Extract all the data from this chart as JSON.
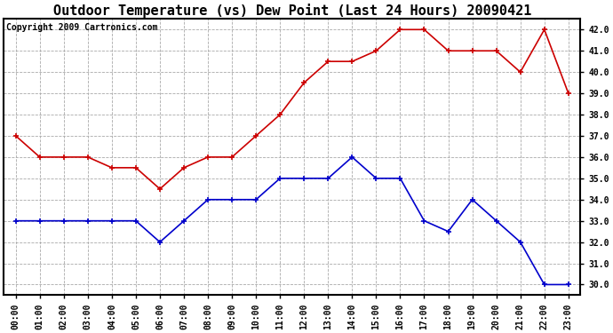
{
  "title": "Outdoor Temperature (vs) Dew Point (Last 24 Hours) 20090421",
  "copyright": "Copyright 2009 Cartronics.com",
  "hours": [
    "00:00",
    "01:00",
    "02:00",
    "03:00",
    "04:00",
    "05:00",
    "06:00",
    "07:00",
    "08:00",
    "09:00",
    "10:00",
    "11:00",
    "12:00",
    "13:00",
    "14:00",
    "15:00",
    "16:00",
    "17:00",
    "18:00",
    "19:00",
    "20:00",
    "21:00",
    "22:00",
    "23:00"
  ],
  "temp": [
    37.0,
    36.0,
    36.0,
    36.0,
    35.5,
    35.5,
    34.5,
    35.5,
    36.0,
    36.0,
    37.0,
    38.0,
    39.5,
    40.5,
    40.5,
    41.0,
    42.0,
    42.0,
    41.0,
    41.0,
    41.0,
    40.0,
    42.0,
    39.0
  ],
  "dew": [
    33.0,
    33.0,
    33.0,
    33.0,
    33.0,
    33.0,
    32.0,
    33.0,
    34.0,
    34.0,
    34.0,
    35.0,
    35.0,
    35.0,
    36.0,
    35.0,
    35.0,
    33.0,
    32.5,
    34.0,
    33.0,
    32.0,
    30.0,
    30.0
  ],
  "temp_color": "#cc0000",
  "dew_color": "#0000cc",
  "bg_color": "#ffffff",
  "grid_color": "#aaaaaa",
  "ylim": [
    29.5,
    42.5
  ],
  "yticks": [
    30.0,
    31.0,
    32.0,
    33.0,
    34.0,
    35.0,
    36.0,
    37.0,
    38.0,
    39.0,
    40.0,
    41.0,
    42.0
  ],
  "title_fontsize": 11,
  "copyright_fontsize": 7,
  "tick_fontsize": 7,
  "marker": "+"
}
